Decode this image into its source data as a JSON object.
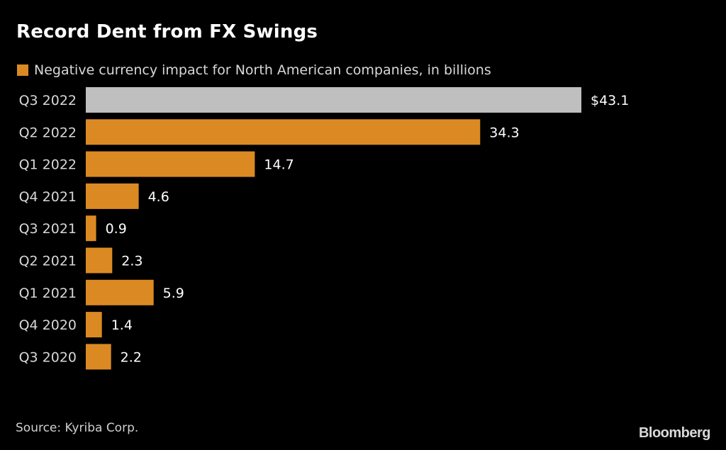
{
  "chart_data": {
    "type": "bar",
    "orientation": "horizontal",
    "title": "Record Dent from FX Swings",
    "legend": [
      {
        "label": "Negative currency impact for North American companies, in billions",
        "color": "#DB8A23"
      }
    ],
    "legend_placement": "top-left",
    "categories": [
      "Q3 2022",
      "Q2 2022",
      "Q1 2022",
      "Q4 2021",
      "Q3 2021",
      "Q2 2021",
      "Q1 2021",
      "Q4 2020",
      "Q3 2020"
    ],
    "values": [
      43.1,
      34.3,
      14.7,
      4.6,
      0.9,
      2.3,
      5.9,
      1.4,
      2.2
    ],
    "value_labels": [
      "$43.1",
      "34.3",
      "14.7",
      "4.6",
      "0.9",
      "2.3",
      "5.9",
      "1.4",
      "2.2"
    ],
    "bar_colors": [
      "#BFBFBF",
      "#DB8A23",
      "#DB8A23",
      "#DB8A23",
      "#DB8A23",
      "#DB8A23",
      "#DB8A23",
      "#DB8A23",
      "#DB8A23"
    ],
    "highlight_color": "#BFBFBF",
    "series_color": "#DB8A23",
    "xlabel": "",
    "ylabel": "",
    "xlim": [
      0,
      43.1
    ],
    "grid": false
  },
  "footer": {
    "source": "Source: Kyriba Corp.",
    "brand": "Bloomberg"
  }
}
